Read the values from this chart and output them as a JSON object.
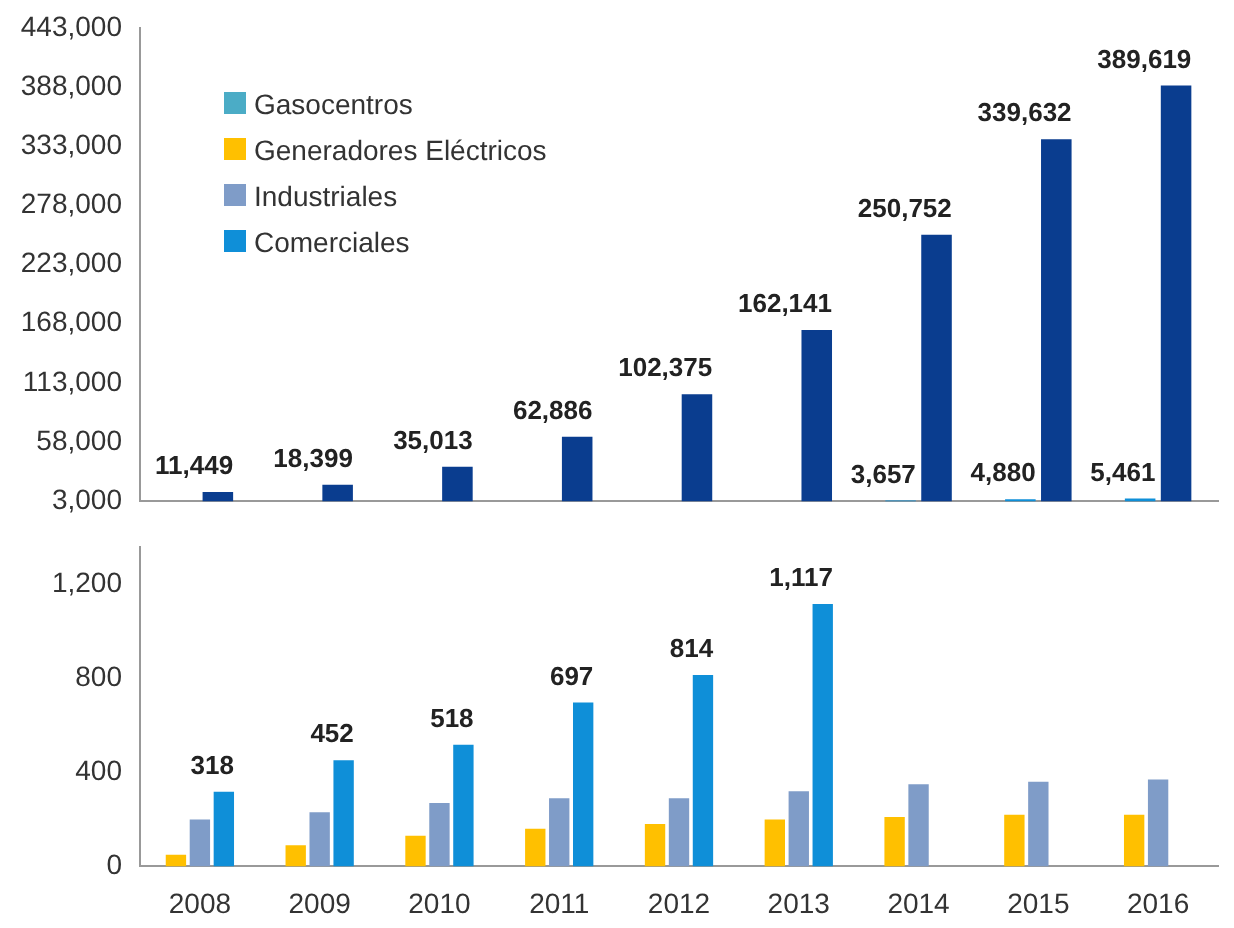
{
  "chart_data": [
    {
      "type": "bar",
      "categories": [
        "2008",
        "2009",
        "2010",
        "2011",
        "2012",
        "2013",
        "2014",
        "2015",
        "2016"
      ],
      "tick_labels": "y",
      "ylim": [
        3000,
        443000
      ],
      "yticks": [
        {
          "value": 3000,
          "label": "3,000"
        },
        {
          "value": 58000,
          "label": "58,000"
        },
        {
          "value": 113000,
          "label": "113,000"
        },
        {
          "value": 168000,
          "label": "168,000"
        },
        {
          "value": 223000,
          "label": "223,000"
        },
        {
          "value": 278000,
          "label": "278,000"
        },
        {
          "value": 333000,
          "label": "333,000"
        },
        {
          "value": 388000,
          "label": "388,000"
        },
        {
          "value": 443000,
          "label": "443,000"
        }
      ],
      "legend": "top left",
      "series": [
        {
          "name": "Gasocentros",
          "color": "#4bacc6",
          "values": [
            null,
            null,
            null,
            null,
            null,
            null,
            null,
            null,
            null
          ]
        },
        {
          "name": "Generadores Eléctricos",
          "color": "#ffc000",
          "values": [
            null,
            null,
            null,
            null,
            null,
            null,
            null,
            null,
            null
          ]
        },
        {
          "name": "Industriales",
          "color": "#7f9cc8",
          "values": [
            null,
            null,
            null,
            null,
            null,
            null,
            null,
            null,
            null
          ]
        },
        {
          "name": "Comerciales",
          "color": "#0f8fd8",
          "values": [
            null,
            null,
            null,
            null,
            null,
            null,
            3657,
            4880,
            5461
          ],
          "value_labels": [
            null,
            null,
            null,
            null,
            null,
            null,
            "3,657",
            "4,880",
            "5,461"
          ]
        },
        {
          "color": "#0a3d8f",
          "values": [
            11449,
            18399,
            35013,
            62886,
            102375,
            162141,
            250752,
            339632,
            389619
          ],
          "value_labels": [
            "11,449",
            "18,399",
            "35,013",
            "62,886",
            "102,375",
            "162,141",
            "250,752",
            "339,632",
            "389,619"
          ]
        }
      ]
    },
    {
      "type": "bar",
      "categories": [
        "2008",
        "2009",
        "2010",
        "2011",
        "2012",
        "2013",
        "2014",
        "2015",
        "2016"
      ],
      "ylim": [
        0,
        1360
      ],
      "yticks": [
        0,
        400,
        800,
        {
          "value": 1200,
          "label": "1,200"
        }
      ],
      "series": [
        {
          "color": "#ffc000",
          "values": [
            50,
            90,
            130,
            160,
            180,
            200,
            210,
            220,
            220
          ]
        },
        {
          "color": "#7f9cc8",
          "values": [
            200,
            230,
            270,
            290,
            290,
            320,
            350,
            360,
            370
          ]
        },
        {
          "color": "#0f8fd8",
          "values": [
            318,
            452,
            518,
            697,
            814,
            1117,
            null,
            null,
            null
          ],
          "value_labels": [
            "318",
            "452",
            "518",
            "697",
            "814",
            "1,117",
            null,
            null,
            null
          ]
        }
      ]
    }
  ]
}
